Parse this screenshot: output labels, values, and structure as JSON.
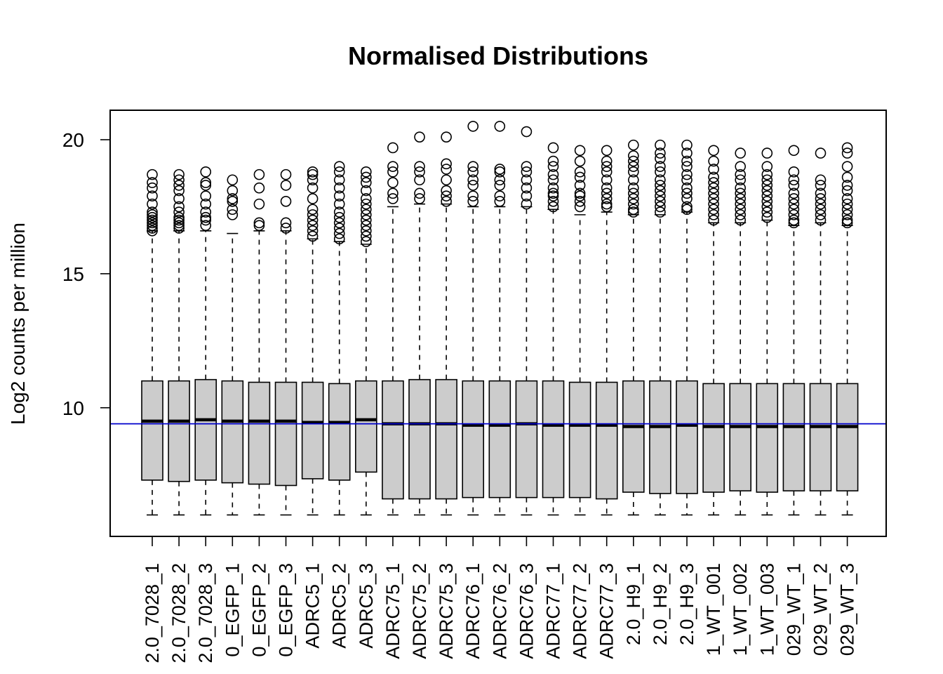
{
  "chart_data": {
    "type": "boxplot",
    "title": "Normalised Distributions",
    "xlabel": "",
    "ylabel": "Log2 counts per million",
    "ylim": [
      5.2,
      21.1
    ],
    "yticks": [
      10,
      15,
      20
    ],
    "reference_line": {
      "y": 9.4,
      "color": "#0000cc"
    },
    "box_fill": "#cccccc",
    "grid": false,
    "categories": [
      "2.0_7028_1",
      "2.0_7028_2",
      "2.0_7028_3",
      "0_EGFP_1",
      "0_EGFP_2",
      "0_EGFP_3",
      "ADRC5_1",
      "ADRC5_2",
      "ADRC5_3",
      "ADRC75_1",
      "ADRC75_2",
      "ADRC75_3",
      "ADRC76_1",
      "ADRC76_2",
      "ADRC76_3",
      "ADRC77_1",
      "ADRC77_2",
      "ADRC77_3",
      "2.0_H9_1",
      "2.0_H9_2",
      "2.0_H9_3",
      "1_WT_001",
      "1_WT_002",
      "1_WT_003",
      "029_WT_1",
      "029_WT_2",
      "029_WT_3"
    ],
    "boxes": [
      {
        "q1": 7.3,
        "median": 9.5,
        "q3": 11.0,
        "whisker_low": 6.0,
        "whisker_high": 16.6,
        "outliers": [
          16.6,
          16.7,
          16.8,
          16.9,
          17.0,
          17.1,
          17.2,
          17.3,
          17.6,
          17.9,
          18.2,
          18.4,
          18.7
        ]
      },
      {
        "q1": 7.25,
        "median": 9.5,
        "q3": 11.0,
        "whisker_low": 6.0,
        "whisker_high": 16.6,
        "outliers": [
          16.7,
          16.8,
          16.9,
          17.0,
          17.1,
          17.3,
          17.5,
          17.8,
          18.1,
          18.3,
          18.5,
          18.7
        ]
      },
      {
        "q1": 7.3,
        "median": 9.55,
        "q3": 11.05,
        "whisker_low": 6.0,
        "whisker_high": 16.6,
        "outliers": [
          16.8,
          17.0,
          17.1,
          17.3,
          17.6,
          17.9,
          18.3,
          18.4,
          18.8
        ]
      },
      {
        "q1": 7.2,
        "median": 9.5,
        "q3": 11.0,
        "whisker_low": 6.0,
        "whisker_high": 16.5,
        "outliers": [
          17.2,
          17.4,
          17.7,
          17.8,
          18.1,
          18.5
        ]
      },
      {
        "q1": 7.15,
        "median": 9.5,
        "q3": 10.95,
        "whisker_low": 6.0,
        "whisker_high": 16.6,
        "outliers": [
          16.8,
          16.9,
          17.6,
          18.2,
          18.7
        ]
      },
      {
        "q1": 7.1,
        "median": 9.5,
        "q3": 10.95,
        "whisker_low": 6.0,
        "whisker_high": 16.6,
        "outliers": [
          16.7,
          16.9,
          17.7,
          18.3,
          18.7
        ]
      },
      {
        "q1": 7.35,
        "median": 9.45,
        "q3": 10.95,
        "whisker_low": 6.0,
        "whisker_high": 16.3,
        "outliers": [
          16.4,
          16.6,
          16.8,
          17.0,
          17.2,
          17.4,
          17.8,
          18.2,
          18.5,
          18.7,
          18.8
        ]
      },
      {
        "q1": 7.3,
        "median": 9.45,
        "q3": 10.9,
        "whisker_low": 6.0,
        "whisker_high": 16.2,
        "outliers": [
          16.3,
          16.5,
          16.7,
          16.9,
          17.1,
          17.3,
          17.6,
          17.9,
          18.2,
          18.5,
          18.8,
          19.0
        ]
      },
      {
        "q1": 7.6,
        "median": 9.55,
        "q3": 11.0,
        "whisker_low": 6.0,
        "whisker_high": 16.1,
        "outliers": [
          16.2,
          16.4,
          16.6,
          16.8,
          17.0,
          17.2,
          17.4,
          17.6,
          17.8,
          18.1,
          18.4,
          18.6,
          18.8
        ]
      },
      {
        "q1": 6.6,
        "median": 9.4,
        "q3": 11.0,
        "whisker_low": 6.0,
        "whisker_high": 17.5,
        "outliers": [
          17.8,
          18.0,
          18.4,
          18.8,
          19.0,
          19.7
        ]
      },
      {
        "q1": 6.6,
        "median": 9.4,
        "q3": 11.05,
        "whisker_low": 6.0,
        "whisker_high": 17.6,
        "outliers": [
          17.8,
          18.0,
          18.5,
          18.8,
          19.0,
          20.1
        ]
      },
      {
        "q1": 6.6,
        "median": 9.4,
        "q3": 11.05,
        "whisker_low": 6.0,
        "whisker_high": 17.6,
        "outliers": [
          17.7,
          17.9,
          18.1,
          18.5,
          18.9,
          19.1,
          20.1
        ]
      },
      {
        "q1": 6.65,
        "median": 9.35,
        "q3": 11.0,
        "whisker_low": 6.0,
        "whisker_high": 17.5,
        "outliers": [
          17.7,
          17.9,
          18.3,
          18.5,
          18.8,
          19.0,
          20.5
        ]
      },
      {
        "q1": 6.65,
        "median": 9.35,
        "q3": 11.0,
        "whisker_low": 6.0,
        "whisker_high": 17.5,
        "outliers": [
          17.7,
          17.9,
          18.3,
          18.5,
          18.8,
          18.9,
          20.5
        ]
      },
      {
        "q1": 6.65,
        "median": 9.4,
        "q3": 11.0,
        "whisker_low": 6.0,
        "whisker_high": 17.5,
        "outliers": [
          17.6,
          17.9,
          18.2,
          18.5,
          18.8,
          19.0,
          20.3
        ]
      },
      {
        "q1": 6.65,
        "median": 9.35,
        "q3": 11.0,
        "whisker_low": 6.0,
        "whisker_high": 17.4,
        "outliers": [
          17.5,
          17.7,
          17.9,
          18.0,
          18.2,
          18.5,
          18.7,
          19.0,
          19.2,
          19.7
        ]
      },
      {
        "q1": 6.65,
        "median": 9.35,
        "q3": 10.95,
        "whisker_low": 6.0,
        "whisker_high": 17.2,
        "outliers": [
          17.5,
          17.7,
          17.9,
          18.0,
          18.3,
          18.6,
          18.8,
          19.2,
          19.6
        ]
      },
      {
        "q1": 6.6,
        "median": 9.35,
        "q3": 10.95,
        "whisker_low": 6.0,
        "whisker_high": 17.3,
        "outliers": [
          17.5,
          17.6,
          17.8,
          18.0,
          18.2,
          18.5,
          18.8,
          19.0,
          19.2,
          19.6
        ]
      },
      {
        "q1": 6.85,
        "median": 9.3,
        "q3": 11.0,
        "whisker_low": 6.0,
        "whisker_high": 17.2,
        "outliers": [
          17.3,
          17.4,
          17.6,
          17.8,
          18.0,
          18.2,
          18.5,
          18.8,
          19.0,
          19.2,
          19.4,
          19.8
        ]
      },
      {
        "q1": 6.8,
        "median": 9.3,
        "q3": 11.0,
        "whisker_low": 6.0,
        "whisker_high": 17.2,
        "outliers": [
          17.3,
          17.5,
          17.7,
          17.9,
          18.1,
          18.3,
          18.5,
          18.8,
          19.0,
          19.3,
          19.5,
          19.8
        ]
      },
      {
        "q1": 6.8,
        "median": 9.35,
        "q3": 11.0,
        "whisker_low": 6.0,
        "whisker_high": 17.3,
        "outliers": [
          17.4,
          17.5,
          17.8,
          18.0,
          18.2,
          18.5,
          18.7,
          19.0,
          19.2,
          19.5,
          19.8
        ]
      },
      {
        "q1": 6.85,
        "median": 9.3,
        "q3": 10.9,
        "whisker_low": 6.0,
        "whisker_high": 16.9,
        "outliers": [
          17.0,
          17.2,
          17.4,
          17.6,
          17.8,
          18.0,
          18.2,
          18.4,
          18.6,
          18.9,
          19.2,
          19.6
        ]
      },
      {
        "q1": 6.9,
        "median": 9.3,
        "q3": 10.9,
        "whisker_low": 6.0,
        "whisker_high": 16.9,
        "outliers": [
          17.0,
          17.2,
          17.4,
          17.6,
          17.8,
          18.0,
          18.2,
          18.5,
          18.7,
          19.0,
          19.5
        ]
      },
      {
        "q1": 6.85,
        "median": 9.3,
        "q3": 10.9,
        "whisker_low": 6.0,
        "whisker_high": 17.0,
        "outliers": [
          17.1,
          17.3,
          17.5,
          17.7,
          17.9,
          18.1,
          18.3,
          18.5,
          18.7,
          19.0,
          19.5
        ]
      },
      {
        "q1": 6.9,
        "median": 9.3,
        "q3": 10.9,
        "whisker_low": 6.0,
        "whisker_high": 16.8,
        "outliers": [
          16.9,
          17.0,
          17.2,
          17.4,
          17.6,
          17.8,
          18.0,
          18.3,
          18.5,
          18.8,
          19.6
        ]
      },
      {
        "q1": 6.9,
        "median": 9.3,
        "q3": 10.9,
        "whisker_low": 6.0,
        "whisker_high": 16.9,
        "outliers": [
          17.0,
          17.2,
          17.4,
          17.6,
          17.8,
          18.0,
          18.3,
          18.5,
          19.5
        ]
      },
      {
        "q1": 6.9,
        "median": 9.3,
        "q3": 10.9,
        "whisker_low": 6.0,
        "whisker_high": 16.8,
        "outliers": [
          16.9,
          17.0,
          17.2,
          17.4,
          17.6,
          17.8,
          18.1,
          18.3,
          18.6,
          19.0,
          19.5,
          19.7
        ]
      }
    ]
  }
}
